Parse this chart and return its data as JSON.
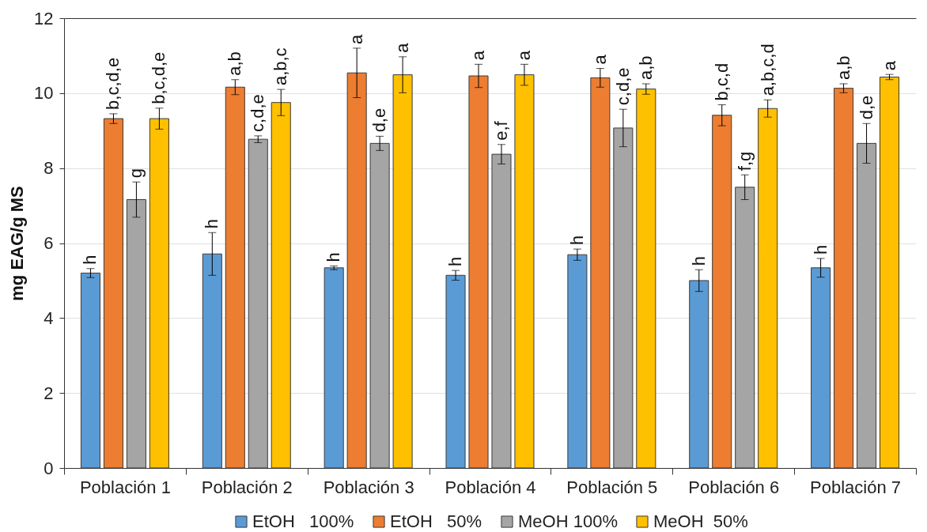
{
  "chart_data": {
    "type": "bar",
    "ylabel": "mg EAG/g MS",
    "categories": [
      "Población 1",
      "Población 2",
      "Población 3",
      "Población 4",
      "Población 5",
      "Población 6",
      "Población 7"
    ],
    "series": [
      {
        "name": "EtOH   100%",
        "color": "#5b9bd5",
        "values": [
          5.2,
          5.71,
          5.34,
          5.14,
          5.69,
          5.0,
          5.34
        ],
        "errors": [
          0.12,
          0.57,
          0.05,
          0.13,
          0.15,
          0.29,
          0.25
        ],
        "value_labels": [
          "h",
          "h",
          "h",
          "h",
          "h",
          "h",
          "h"
        ]
      },
      {
        "name": "EtOH   50%",
        "color": "#ed7d31",
        "values": [
          9.32,
          10.16,
          10.54,
          10.46,
          10.41,
          9.41,
          10.13
        ],
        "errors": [
          0.13,
          0.2,
          0.66,
          0.31,
          0.25,
          0.28,
          0.12
        ],
        "value_labels": [
          "b,c,d,e",
          "a,b",
          "a",
          "a",
          "a",
          "b,c,d",
          "a,b"
        ]
      },
      {
        "name": "MeOH 100%",
        "color": "#a5a5a5",
        "values": [
          7.16,
          8.77,
          8.66,
          8.37,
          9.07,
          7.49,
          8.66
        ],
        "errors": [
          0.47,
          0.09,
          0.19,
          0.26,
          0.5,
          0.33,
          0.53
        ],
        "value_labels": [
          "g",
          "c,d,e",
          "d,e",
          "e,f",
          "c,d,e",
          "f,g",
          "d,e"
        ]
      },
      {
        "name": "MeOH  50%",
        "color": "#ffc000",
        "values": [
          9.32,
          9.75,
          10.49,
          10.49,
          10.11,
          9.59,
          10.43
        ],
        "errors": [
          0.28,
          0.35,
          0.48,
          0.28,
          0.14,
          0.23,
          0.07
        ],
        "value_labels": [
          "b,c,d,e",
          "a,b,c",
          "a",
          "a",
          "a,b",
          "a,b,c,d",
          "a"
        ]
      }
    ],
    "ylim": [
      0,
      12
    ],
    "yticks": [
      0,
      2,
      4,
      6,
      8,
      10,
      12
    ],
    "grid": "y",
    "legend": "bottom"
  }
}
